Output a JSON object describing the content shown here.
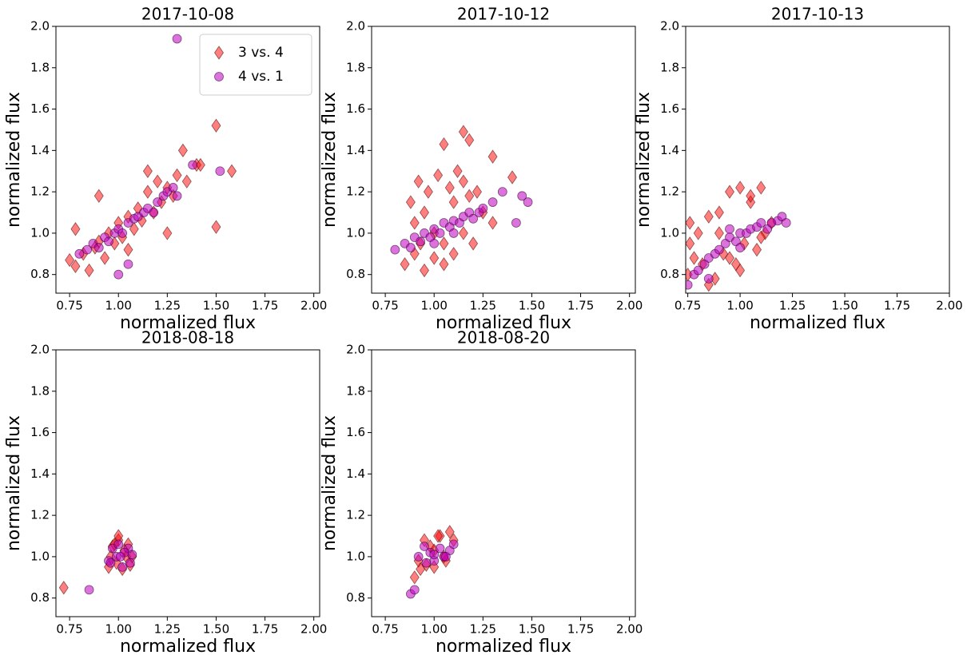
{
  "chart_data": [
    {
      "type": "scatter",
      "title": "2017-10-08",
      "xlabel": "normalized flux",
      "ylabel": "normalized flux",
      "xlim": [
        0.68,
        2.03
      ],
      "ylim": [
        0.71,
        2.0
      ],
      "xticks": [
        0.75,
        {
          "value": 1,
          "label": "1.00"
        },
        1.25,
        {
          "value": 1.5,
          "label": "1.50"
        },
        1.75,
        {
          "value": 2,
          "label": "2.00"
        }
      ],
      "yticks": [
        0.8,
        {
          "value": 1,
          "label": "1.0"
        },
        1.2,
        1.4,
        1.6,
        1.8,
        {
          "value": 2,
          "label": "2.0"
        }
      ],
      "legend": "upper right",
      "series": [
        {
          "name": "3 vs. 4",
          "color": "#ff0000",
          "marker": "diamond",
          "x": [
            0.75,
            0.78,
            0.82,
            0.85,
            0.88,
            0.9,
            0.93,
            0.95,
            0.98,
            1.0,
            1.02,
            1.05,
            1.08,
            1.1,
            1.12,
            1.15,
            1.18,
            1.2,
            1.22,
            1.25,
            1.28,
            1.3,
            1.33,
            1.35,
            1.4,
            1.42,
            1.5,
            1.5,
            1.58,
            0.78,
            1.25,
            0.9,
            1.05,
            1.15
          ],
          "y": [
            0.87,
            0.84,
            0.9,
            0.82,
            0.93,
            0.96,
            0.88,
            1.0,
            0.95,
            1.05,
            0.98,
            1.08,
            1.02,
            1.12,
            1.06,
            1.2,
            1.1,
            1.25,
            1.15,
            1.22,
            1.18,
            1.28,
            1.4,
            1.25,
            1.33,
            1.33,
            1.52,
            1.03,
            1.3,
            1.02,
            1.0,
            1.18,
            0.92,
            1.3
          ]
        },
        {
          "name": "4 vs. 1",
          "color": "#bf00bf",
          "marker": "circle",
          "x": [
            0.8,
            0.84,
            0.87,
            0.9,
            0.93,
            0.95,
            0.98,
            1.0,
            1.02,
            1.05,
            1.08,
            1.1,
            1.13,
            1.15,
            1.18,
            1.2,
            1.23,
            1.25,
            1.28,
            1.3,
            1.3,
            1.52,
            1.0,
            1.38,
            1.05
          ],
          "y": [
            0.9,
            0.92,
            0.95,
            0.93,
            0.98,
            0.96,
            1.0,
            1.02,
            1.0,
            1.05,
            1.07,
            1.08,
            1.1,
            1.12,
            1.1,
            1.15,
            1.18,
            1.2,
            1.22,
            1.18,
            1.94,
            1.3,
            0.8,
            1.33,
            0.85
          ]
        }
      ]
    },
    {
      "type": "scatter",
      "title": "2017-10-12",
      "xlabel": "normalized flux",
      "ylabel": "normalized flux",
      "xlim": [
        0.68,
        2.03
      ],
      "ylim": [
        0.71,
        2.0
      ],
      "xticks": [
        0.75,
        {
          "value": 1,
          "label": "1.00"
        },
        1.25,
        {
          "value": 1.5,
          "label": "1.50"
        },
        1.75,
        {
          "value": 2,
          "label": "2.00"
        }
      ],
      "yticks": [
        0.8,
        {
          "value": 1,
          "label": "1.0"
        },
        1.2,
        1.4,
        1.6,
        1.8,
        {
          "value": 2,
          "label": "2.0"
        }
      ],
      "series": [
        {
          "color": "#ff0000",
          "marker": "diamond",
          "x": [
            0.85,
            0.88,
            0.9,
            0.92,
            0.95,
            0.97,
            1.0,
            1.02,
            1.05,
            1.08,
            1.1,
            1.12,
            1.15,
            1.18,
            1.2,
            1.25,
            1.3,
            0.9,
            0.95,
            1.0,
            1.05,
            1.1,
            1.15,
            1.15,
            1.05,
            1.18,
            1.4,
            1.3,
            0.93,
            1.22
          ],
          "y": [
            0.85,
            1.15,
            0.9,
            1.25,
            0.82,
            1.2,
            0.88,
            1.28,
            0.95,
            1.22,
            0.9,
            1.3,
            1.0,
            1.18,
            0.95,
            1.1,
            1.05,
            1.05,
            1.1,
            1.0,
            0.85,
            1.15,
            1.25,
            1.49,
            1.43,
            1.45,
            1.27,
            1.37,
            0.95,
            1.2
          ]
        },
        {
          "color": "#bf00bf",
          "marker": "circle",
          "x": [
            0.8,
            0.85,
            0.88,
            0.9,
            0.93,
            0.95,
            0.98,
            1.0,
            1.03,
            1.05,
            1.08,
            1.1,
            1.13,
            1.15,
            1.18,
            1.2,
            1.23,
            1.25,
            1.3,
            1.35,
            1.42,
            1.45,
            1.48,
            1.0,
            1.1
          ],
          "y": [
            0.92,
            0.95,
            0.93,
            0.98,
            0.96,
            1.0,
            0.98,
            1.02,
            1.0,
            1.05,
            1.03,
            1.06,
            1.05,
            1.08,
            1.1,
            1.07,
            1.1,
            1.12,
            1.15,
            1.2,
            1.05,
            1.18,
            1.15,
            0.95,
            1.0
          ]
        }
      ]
    },
    {
      "type": "scatter",
      "title": "2017-10-13",
      "xlabel": "normalized flux",
      "ylabel": "normalized flux",
      "xlim": [
        0.74,
        2.0
      ],
      "ylim": [
        0.71,
        2.0
      ],
      "xticks": [
        0.75,
        {
          "value": 1,
          "label": "1.00"
        },
        1.25,
        {
          "value": 1.5,
          "label": "1.50"
        },
        1.75,
        {
          "value": 2,
          "label": "2.00"
        }
      ],
      "yticks": [
        0.8,
        {
          "value": 1,
          "label": "1.0"
        },
        1.2,
        1.4,
        1.6,
        1.8,
        {
          "value": 2,
          "label": "2.0"
        }
      ],
      "series": [
        {
          "color": "#ff0000",
          "marker": "diamond",
          "x": [
            0.75,
            0.76,
            0.78,
            0.8,
            0.82,
            0.85,
            0.88,
            0.9,
            0.92,
            0.95,
            0.98,
            1.0,
            1.02,
            1.05,
            1.08,
            1.1,
            1.12,
            1.15,
            0.85,
            0.95,
            1.05,
            1.0,
            0.9,
            1.1,
            0.76
          ],
          "y": [
            0.8,
            0.95,
            0.88,
            1.0,
            0.85,
            1.08,
            0.78,
            1.1,
            0.9,
            1.2,
            0.85,
            1.22,
            0.95,
            1.15,
            0.92,
            1.22,
            1.0,
            1.05,
            0.75,
            0.88,
            1.18,
            0.82,
            1.0,
            0.98,
            1.05
          ]
        },
        {
          "color": "#bf00bf",
          "marker": "circle",
          "x": [
            0.75,
            0.78,
            0.8,
            0.83,
            0.85,
            0.88,
            0.9,
            0.93,
            0.95,
            0.98,
            1.0,
            1.03,
            1.05,
            1.08,
            1.1,
            1.13,
            1.15,
            1.18,
            1.2,
            1.22,
            0.85,
            0.95,
            1.0
          ],
          "y": [
            0.75,
            0.8,
            0.82,
            0.85,
            0.88,
            0.9,
            0.92,
            0.95,
            0.98,
            0.96,
            1.0,
            1.0,
            1.02,
            1.03,
            1.05,
            1.02,
            1.05,
            1.06,
            1.08,
            1.05,
            0.78,
            1.02,
            0.93
          ]
        }
      ]
    },
    {
      "type": "scatter",
      "title": "2018-08-18",
      "xlabel": "normalized flux",
      "ylabel": "normalized flux",
      "xlim": [
        0.68,
        2.03
      ],
      "ylim": [
        0.71,
        2.0
      ],
      "xticks": [
        0.75,
        {
          "value": 1,
          "label": "1.00"
        },
        1.25,
        {
          "value": 1.5,
          "label": "1.50"
        },
        1.75,
        {
          "value": 2,
          "label": "2.00"
        }
      ],
      "yticks": [
        0.8,
        {
          "value": 1,
          "label": "1.0"
        },
        1.2,
        1.4,
        1.6,
        1.8,
        {
          "value": 2,
          "label": "2.0"
        }
      ],
      "series": [
        {
          "color": "#ff0000",
          "marker": "diamond",
          "x": [
            0.95,
            0.97,
            1.0,
            1.02,
            1.05,
            1.07,
            0.96,
            0.99,
            1.03,
            1.06,
            1.0,
            0.98,
            1.04,
            0.72
          ],
          "y": [
            0.95,
            1.05,
            1.08,
            0.94,
            1.06,
            1.0,
            1.0,
            0.97,
            1.03,
            0.96,
            1.1,
            1.06,
            1.0,
            0.85
          ]
        },
        {
          "color": "#bf00bf",
          "marker": "circle",
          "x": [
            0.95,
            0.97,
            1.0,
            1.02,
            1.05,
            1.07,
            0.96,
            0.99,
            1.03,
            1.06,
            1.01,
            0.85
          ],
          "y": [
            0.98,
            1.04,
            1.06,
            0.95,
            1.04,
            1.01,
            0.97,
            1.0,
            1.02,
            0.97,
            1.0,
            0.84
          ]
        }
      ]
    },
    {
      "type": "scatter",
      "title": "2018-08-20",
      "xlabel": "normalized flux",
      "ylabel": "normalized flux",
      "xlim": [
        0.68,
        2.03
      ],
      "ylim": [
        0.71,
        2.0
      ],
      "xticks": [
        0.75,
        {
          "value": 1,
          "label": "1.00"
        },
        1.25,
        {
          "value": 1.5,
          "label": "1.50"
        },
        1.75,
        {
          "value": 2,
          "label": "2.00"
        }
      ],
      "yticks": [
        0.8,
        {
          "value": 1,
          "label": "1.0"
        },
        1.2,
        1.4,
        1.6,
        1.8,
        {
          "value": 2,
          "label": "2.0"
        }
      ],
      "series": [
        {
          "color": "#ff0000",
          "marker": "diamond",
          "x": [
            0.92,
            0.95,
            0.98,
            1.0,
            1.03,
            1.05,
            1.08,
            0.96,
            1.0,
            1.06,
            1.1,
            0.9,
            0.93,
            1.02
          ],
          "y": [
            0.98,
            1.08,
            1.05,
            0.95,
            1.1,
            1.0,
            1.12,
            0.96,
            1.03,
            0.98,
            1.08,
            0.9,
            0.94,
            1.1
          ]
        },
        {
          "color": "#bf00bf",
          "marker": "circle",
          "x": [
            0.92,
            0.95,
            0.98,
            1.0,
            1.03,
            1.05,
            1.08,
            0.96,
            1.0,
            1.06,
            0.88,
            0.9,
            1.1
          ],
          "y": [
            1.0,
            1.05,
            1.02,
            0.98,
            1.04,
            1.0,
            1.03,
            0.97,
            1.01,
            1.0,
            0.82,
            0.84,
            1.06
          ]
        }
      ]
    }
  ]
}
